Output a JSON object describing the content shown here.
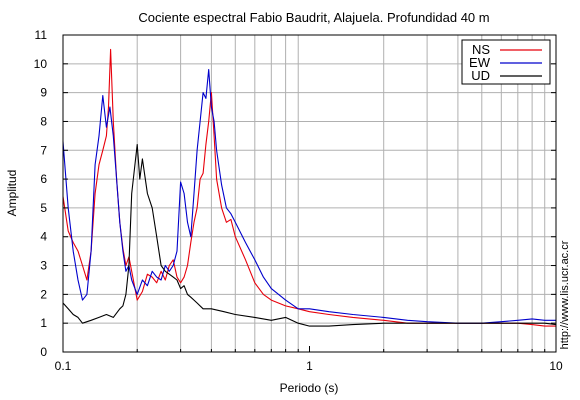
{
  "chart_data": {
    "type": "line",
    "title": "Cociente espectral Fabio Baudrit, Alajuela. Profundidad 40 m",
    "xlabel": "Periodo (s)",
    "ylabel": "Amplitud",
    "xscale": "log",
    "xlim": [
      0.1,
      10
    ],
    "ylim": [
      0,
      11
    ],
    "x_ticks": [
      0.1,
      1,
      10
    ],
    "x_tick_labels": [
      "0.1",
      "1",
      "10"
    ],
    "y_ticks": [
      0,
      1,
      2,
      3,
      4,
      5,
      6,
      7,
      8,
      9,
      10,
      11
    ],
    "grid": true,
    "legend_position": "top-right",
    "credit": "http://www.lis.ucr.ac.cr",
    "series": [
      {
        "name": "NS",
        "color": "#e8000b",
        "x": [
          0.1,
          0.105,
          0.11,
          0.115,
          0.12,
          0.125,
          0.13,
          0.135,
          0.14,
          0.145,
          0.15,
          0.153,
          0.156,
          0.16,
          0.165,
          0.17,
          0.175,
          0.18,
          0.185,
          0.19,
          0.2,
          0.21,
          0.22,
          0.23,
          0.24,
          0.25,
          0.26,
          0.27,
          0.28,
          0.29,
          0.3,
          0.31,
          0.32,
          0.33,
          0.34,
          0.35,
          0.36,
          0.37,
          0.38,
          0.39,
          0.4,
          0.41,
          0.42,
          0.44,
          0.46,
          0.48,
          0.5,
          0.55,
          0.6,
          0.65,
          0.7,
          0.8,
          0.9,
          1.0,
          1.2,
          1.5,
          2.0,
          2.5,
          3.0,
          4.0,
          5.0,
          6.0,
          7.0,
          8.0,
          9.0,
          10.0
        ],
        "y": [
          5.4,
          4.2,
          3.8,
          3.5,
          3.0,
          2.5,
          3.5,
          5.5,
          6.5,
          7.0,
          7.5,
          8.5,
          10.5,
          8.0,
          6.0,
          4.5,
          3.6,
          3.0,
          3.3,
          2.8,
          1.8,
          2.1,
          2.7,
          2.6,
          2.4,
          2.8,
          2.5,
          3.0,
          3.2,
          2.6,
          2.4,
          2.6,
          3.0,
          3.8,
          4.5,
          5.0,
          6.0,
          6.2,
          7.2,
          8.0,
          9.0,
          7.5,
          6.0,
          5.0,
          4.5,
          4.6,
          4.0,
          3.2,
          2.4,
          2.0,
          1.8,
          1.6,
          1.5,
          1.4,
          1.3,
          1.2,
          1.1,
          1.0,
          1.0,
          1.0,
          1.0,
          1.0,
          1.0,
          0.95,
          0.9,
          0.9
        ]
      },
      {
        "name": "EW",
        "color": "#0000cc",
        "x": [
          0.1,
          0.105,
          0.11,
          0.115,
          0.12,
          0.125,
          0.13,
          0.135,
          0.14,
          0.145,
          0.15,
          0.155,
          0.16,
          0.165,
          0.17,
          0.175,
          0.18,
          0.185,
          0.19,
          0.2,
          0.21,
          0.22,
          0.23,
          0.24,
          0.25,
          0.26,
          0.27,
          0.28,
          0.29,
          0.3,
          0.31,
          0.32,
          0.33,
          0.34,
          0.35,
          0.36,
          0.37,
          0.38,
          0.39,
          0.4,
          0.41,
          0.42,
          0.44,
          0.46,
          0.48,
          0.5,
          0.55,
          0.6,
          0.65,
          0.7,
          0.8,
          0.9,
          1.0,
          1.2,
          1.5,
          2.0,
          2.5,
          3.0,
          4.0,
          5.0,
          6.0,
          7.0,
          8.0,
          9.0,
          10.0
        ],
        "y": [
          7.3,
          5.0,
          3.5,
          2.5,
          1.8,
          2.0,
          3.5,
          6.5,
          7.5,
          8.9,
          7.8,
          8.5,
          7.5,
          6.0,
          4.5,
          3.5,
          2.8,
          3.0,
          2.5,
          2.0,
          2.5,
          2.3,
          2.8,
          2.6,
          2.5,
          3.0,
          2.8,
          3.0,
          3.5,
          5.9,
          5.5,
          4.5,
          4.0,
          5.5,
          7.0,
          8.0,
          9.0,
          8.8,
          9.8,
          8.5,
          8.0,
          7.0,
          5.8,
          5.0,
          4.8,
          4.5,
          3.8,
          3.2,
          2.6,
          2.2,
          1.8,
          1.5,
          1.5,
          1.4,
          1.3,
          1.2,
          1.1,
          1.05,
          1.0,
          1.0,
          1.05,
          1.1,
          1.15,
          1.1,
          1.1
        ]
      },
      {
        "name": "UD",
        "color": "#000000",
        "x": [
          0.1,
          0.105,
          0.11,
          0.115,
          0.12,
          0.13,
          0.14,
          0.15,
          0.16,
          0.17,
          0.175,
          0.18,
          0.185,
          0.19,
          0.2,
          0.205,
          0.21,
          0.22,
          0.23,
          0.24,
          0.25,
          0.26,
          0.27,
          0.28,
          0.29,
          0.3,
          0.31,
          0.32,
          0.33,
          0.34,
          0.35,
          0.37,
          0.4,
          0.45,
          0.5,
          0.6,
          0.7,
          0.8,
          0.9,
          1.0,
          1.2,
          1.5,
          2.0,
          3.0,
          4.0,
          5.0,
          6.0,
          7.0,
          8.0,
          9.0,
          10.0
        ],
        "y": [
          1.7,
          1.5,
          1.3,
          1.2,
          1.0,
          1.1,
          1.2,
          1.3,
          1.2,
          1.5,
          1.6,
          2.0,
          3.0,
          5.5,
          7.2,
          6.0,
          6.7,
          5.5,
          5.0,
          4.0,
          3.0,
          2.8,
          2.7,
          2.6,
          2.5,
          2.2,
          2.3,
          2.0,
          1.9,
          1.8,
          1.7,
          1.5,
          1.5,
          1.4,
          1.3,
          1.2,
          1.1,
          1.2,
          1.0,
          0.9,
          0.9,
          0.95,
          1.0,
          1.0,
          1.0,
          1.0,
          1.0,
          1.0,
          1.0,
          1.0,
          0.95
        ]
      }
    ]
  }
}
